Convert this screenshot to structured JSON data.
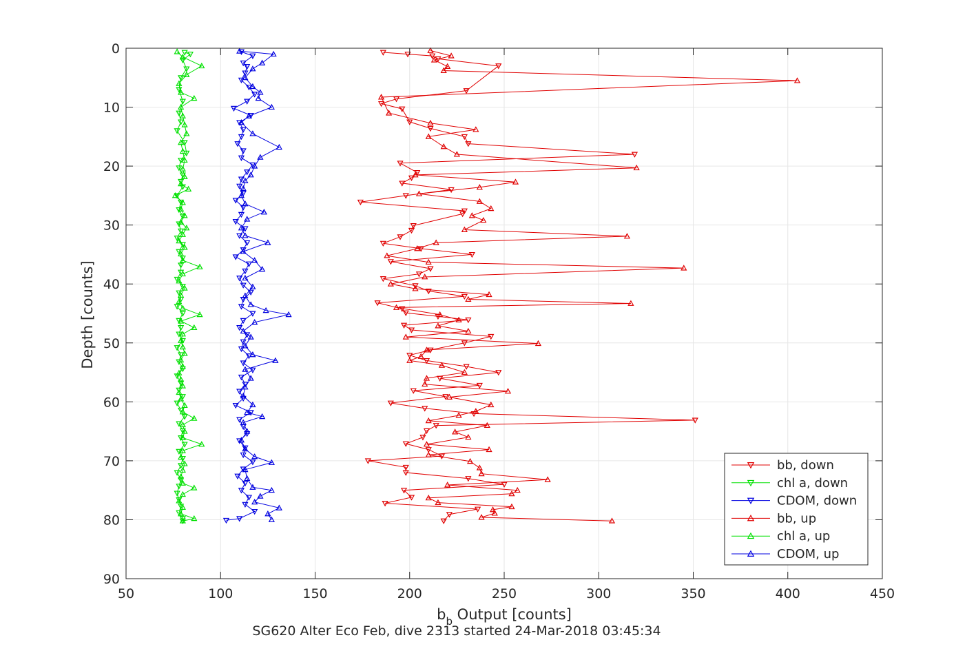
{
  "chart_data": {
    "type": "line",
    "title": "",
    "xlabel_main": "b",
    "xlabel_sub": "b",
    "xlabel_rest": " Output [counts]",
    "ylabel": "Depth [counts]",
    "caption": "SG620 Alter Eco Feb, dive 2313 started 24-Mar-2018 03:45:34",
    "xlim": [
      50,
      450
    ],
    "ylim": [
      0,
      90
    ],
    "y_reversed": true,
    "grid": true,
    "legend_position": "bottom-right",
    "xticks": [
      "50",
      "100",
      "150",
      "200",
      "250",
      "300",
      "350",
      "400",
      "450"
    ],
    "yticks": [
      "0",
      "10",
      "20",
      "30",
      "40",
      "50",
      "60",
      "70",
      "80",
      "90"
    ],
    "series": [
      {
        "name": "bb, down",
        "color": "#e00000",
        "marker": "down",
        "depth": [
          0.7,
          1.0,
          1.3,
          1.8,
          3.0,
          7.2,
          8.6,
          9.4,
          10.3,
          12.5,
          13.6,
          15.0,
          16.2,
          18.0,
          19.5,
          21.1,
          22.0,
          22.9,
          24.0,
          25.0,
          26.1,
          27.6,
          28.1,
          30.1,
          30.9,
          32.0,
          33.1,
          34.0,
          35.0,
          36.2,
          37.4,
          38.3,
          39.1,
          40.3,
          41.2,
          42.1,
          43.2,
          44.2,
          44.9,
          45.5,
          46.1,
          47.0,
          47.8,
          48.9,
          50.0,
          51.2,
          52.1,
          53.0,
          54.0,
          55.0,
          56.0,
          57.2,
          58.1,
          59.1,
          60.2,
          61.1,
          62.0,
          63.1,
          64.0,
          64.9,
          66.0,
          67.1,
          68.1,
          69.2,
          70.0,
          71.1,
          72.0,
          73.0,
          74.0,
          75.0,
          76.2,
          77.2,
          78.2,
          79.1,
          80.2
        ],
        "x": [
          186,
          199,
          212,
          215,
          247,
          230,
          193,
          185,
          196,
          200,
          211,
          229,
          231,
          319,
          195,
          204,
          201,
          196,
          222,
          198,
          174,
          229,
          228,
          202,
          201,
          195,
          186,
          206,
          233,
          190,
          211,
          205,
          186,
          203,
          210,
          229,
          183,
          196,
          198,
          215,
          231,
          197,
          201,
          243,
          229,
          211,
          200,
          209,
          230,
          247,
          216,
          237,
          202,
          219,
          190,
          208,
          234,
          351,
          214,
          209,
          207,
          198,
          210,
          217,
          178,
          198,
          198,
          231,
          250,
          197,
          201,
          187,
          236,
          221,
          218
        ],
        "hidden": false
      },
      {
        "name": "chl a, down",
        "color": "#00e000",
        "marker": "down",
        "depth": [
          0.7,
          1.0,
          2.0,
          3.5,
          5.0,
          7.0,
          9.0,
          11.0,
          12.5,
          14.0,
          16.0,
          17.8,
          19.0,
          20.3,
          21.5,
          22.6,
          23.5,
          25.0,
          26.1,
          27.4,
          28.5,
          29.8,
          31.0,
          32.2,
          33.3,
          34.5,
          35.6,
          36.8,
          38.0,
          39.2,
          40.4,
          41.5,
          42.6,
          43.8,
          45.0,
          46.2,
          47.4,
          48.5,
          49.6,
          50.8,
          52.0,
          53.2,
          54.4,
          55.6,
          56.8,
          58.0,
          59.1,
          60.2,
          61.4,
          62.5,
          63.7,
          64.9,
          66.1,
          67.2,
          68.4,
          69.6,
          70.8,
          72.0,
          73.2,
          74.3,
          75.5,
          76.6,
          77.7,
          78.8,
          79.8,
          80.2
        ],
        "x": [
          81,
          84,
          80,
          82,
          79,
          78,
          80,
          78,
          79,
          77,
          81,
          82,
          79,
          78,
          80,
          79,
          80,
          77,
          79,
          78,
          80,
          78,
          79,
          77,
          80,
          78,
          80,
          79,
          79,
          77,
          80,
          78,
          79,
          77,
          80,
          78,
          79,
          78,
          80,
          77,
          79,
          78,
          80,
          77,
          79,
          78,
          80,
          77,
          79,
          81,
          78,
          80,
          79,
          81,
          78,
          80,
          79,
          77,
          79,
          78,
          77,
          78,
          79,
          78,
          80,
          80
        ],
        "hidden": false
      },
      {
        "name": "CDOM, down",
        "color": "#0000e0",
        "marker": "down",
        "depth": [
          0.6,
          1.3,
          2.5,
          3.1,
          4.2,
          5.4,
          6.6,
          7.8,
          9.0,
          10.2,
          11.4,
          12.6,
          13.8,
          15.0,
          16.2,
          17.4,
          18.6,
          19.8,
          21.0,
          22.2,
          23.4,
          24.6,
          25.8,
          27.0,
          28.2,
          29.4,
          30.6,
          31.8,
          33.0,
          34.2,
          35.4,
          36.6,
          37.8,
          39.0,
          40.2,
          41.4,
          42.6,
          43.8,
          45.0,
          46.2,
          47.4,
          48.6,
          49.8,
          51.0,
          52.2,
          53.4,
          54.6,
          55.8,
          57.0,
          58.2,
          59.4,
          60.6,
          61.8,
          63.0,
          64.2,
          65.4,
          66.6,
          67.8,
          69.0,
          70.2,
          71.4,
          72.6,
          73.8,
          75.0,
          76.2,
          77.4,
          78.6,
          79.8,
          80.1
        ],
        "x": [
          111,
          117,
          112,
          114,
          113,
          111,
          115,
          118,
          114,
          107,
          116,
          110,
          112,
          111,
          109,
          112,
          111,
          117,
          114,
          111,
          110,
          112,
          108,
          112,
          111,
          108,
          113,
          110,
          114,
          112,
          108,
          115,
          113,
          110,
          112,
          116,
          112,
          111,
          117,
          112,
          110,
          114,
          112,
          111,
          115,
          112,
          117,
          111,
          113,
          110,
          112,
          108,
          116,
          110,
          112,
          114,
          110,
          113,
          112,
          117,
          112,
          109,
          113,
          111,
          115,
          113,
          118,
          110,
          103
        ],
        "hidden": false
      },
      {
        "name": "bb, up",
        "color": "#e00000",
        "marker": "up",
        "depth": [
          0.4,
          1.3,
          2.0,
          3.1,
          3.8,
          5.5,
          8.3,
          11.0,
          12.7,
          13.8,
          15.0,
          16.7,
          18.0,
          20.3,
          21.5,
          22.7,
          23.6,
          24.7,
          26.0,
          27.2,
          28.4,
          29.2,
          30.8,
          31.9,
          33.0,
          34.0,
          35.2,
          36.3,
          37.3,
          38.8,
          40.0,
          40.8,
          41.8,
          42.6,
          43.3,
          44.0,
          45.2,
          46.1,
          47.1,
          48.0,
          49.0,
          50.1,
          51.2,
          52.3,
          53.0,
          53.8,
          55.0,
          56.0,
          57.0,
          58.2,
          59.2,
          60.5,
          61.6,
          62.3,
          63.2,
          64.0,
          65.1,
          66.0,
          67.2,
          68.1,
          69.0,
          70.1,
          71.2,
          72.2,
          73.2,
          74.1,
          75.0,
          75.6,
          76.3,
          77.1,
          77.8,
          78.3,
          78.9,
          79.6,
          80.2
        ],
        "x": [
          211,
          222,
          213,
          220,
          218,
          405,
          185,
          189,
          211,
          235,
          210,
          218,
          225,
          320,
          203,
          256,
          237,
          205,
          237,
          243,
          233,
          239,
          229,
          315,
          214,
          204,
          188,
          210,
          345,
          208,
          190,
          203,
          242,
          231,
          317,
          193,
          216,
          226,
          215,
          231,
          198,
          268,
          209,
          206,
          200,
          217,
          229,
          209,
          208,
          252,
          221,
          243,
          235,
          226,
          210,
          241,
          224,
          231,
          209,
          242,
          210,
          232,
          237,
          238,
          273,
          220,
          257,
          254,
          210,
          215,
          254,
          244,
          245,
          238,
          307
        ],
        "hidden": false
      },
      {
        "name": "chl a, up",
        "color": "#00e000",
        "marker": "up",
        "depth": [
          0.6,
          1.5,
          3.0,
          4.5,
          6.0,
          7.5,
          8.5,
          10.0,
          11.5,
          13.0,
          14.5,
          16.0,
          17.5,
          19.0,
          20.5,
          21.8,
          23.0,
          23.9,
          25.0,
          26.2,
          27.3,
          28.4,
          29.5,
          30.5,
          31.6,
          32.7,
          33.8,
          34.9,
          36.0,
          37.1,
          38.3,
          39.5,
          40.7,
          41.9,
          43.0,
          44.1,
          45.2,
          46.3,
          47.4,
          48.5,
          49.6,
          50.7,
          51.8,
          52.9,
          54.0,
          55.1,
          56.2,
          57.3,
          58.4,
          59.5,
          60.6,
          61.7,
          62.8,
          63.9,
          65.0,
          66.1,
          67.2,
          68.3,
          69.4,
          70.5,
          71.6,
          72.7,
          73.8,
          74.6,
          75.7,
          76.8,
          77.9,
          79.0,
          79.8,
          80.2
        ],
        "x": [
          77,
          80,
          90,
          82,
          78,
          79,
          86,
          79,
          80,
          81,
          82,
          79,
          80,
          81,
          80,
          81,
          79,
          83,
          76,
          80,
          79,
          81,
          79,
          82,
          80,
          78,
          81,
          79,
          80,
          89,
          80,
          78,
          81,
          79,
          78,
          80,
          89,
          79,
          86,
          80,
          79,
          80,
          81,
          79,
          80,
          78,
          79,
          80,
          78,
          79,
          81,
          80,
          86,
          80,
          81,
          80,
          90,
          80,
          79,
          81,
          80,
          79,
          80,
          86,
          80,
          78,
          80,
          79,
          86,
          80
        ],
        "hidden": false
      },
      {
        "name": "CDOM, up",
        "color": "#0000e0",
        "marker": "up",
        "depth": [
          0.5,
          1.0,
          2.5,
          3.5,
          5.0,
          6.5,
          7.5,
          8.5,
          10.0,
          11.5,
          12.6,
          14.5,
          16.8,
          18.5,
          20.0,
          21.5,
          22.5,
          23.8,
          25.0,
          26.4,
          27.8,
          29.0,
          30.5,
          31.8,
          33.0,
          34.5,
          36.0,
          37.5,
          39.0,
          40.5,
          42.0,
          43.5,
          44.5,
          45.2,
          46.5,
          48.0,
          49.0,
          50.5,
          52.0,
          53.0,
          54.5,
          56.0,
          57.5,
          59.0,
          60.5,
          61.8,
          62.5,
          63.5,
          65.0,
          66.5,
          68.0,
          69.3,
          70.3,
          71.5,
          73.0,
          74.5,
          75.0,
          76.0,
          77.0,
          78.0,
          79.0,
          80.0
        ],
        "x": [
          110,
          128,
          122,
          117,
          113,
          117,
          121,
          120,
          127,
          115,
          111,
          117,
          131,
          121,
          118,
          116,
          113,
          112,
          111,
          113,
          123,
          114,
          111,
          113,
          125,
          112,
          118,
          122,
          113,
          117,
          113,
          116,
          124,
          136,
          118,
          112,
          116,
          113,
          117,
          129,
          113,
          116,
          113,
          112,
          117,
          114,
          122,
          112,
          114,
          111,
          113,
          118,
          127,
          113,
          114,
          117,
          127,
          121,
          118,
          131,
          125,
          127
        ],
        "hidden": false
      }
    ]
  }
}
